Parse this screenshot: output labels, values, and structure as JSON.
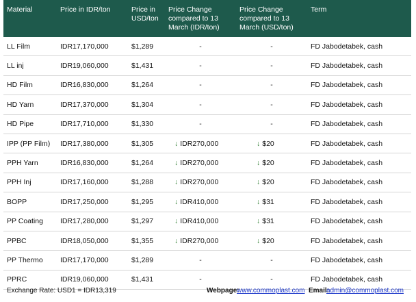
{
  "table": {
    "header": [
      "Material",
      "Price in IDR/ton",
      "Price in USD/ton",
      "Price Change compared to 13 March (IDR/ton)",
      "Price Change compared to 13 March (USD/ton)",
      "Term"
    ],
    "rows": [
      [
        "LL Film",
        "IDR17,170,000",
        "$1,289",
        "-",
        "-",
        "FD Jabodetabek, cash"
      ],
      [
        "LL inj",
        "IDR19,060,000",
        "$1,431",
        "-",
        "-",
        "FD Jabodetabek, cash"
      ],
      [
        "HD Film",
        "IDR16,830,000",
        "$1,264",
        "-",
        "-",
        "FD Jabodetabek, cash"
      ],
      [
        "HD Yarn",
        "IDR17,370,000",
        "$1,304",
        "-",
        "-",
        "FD Jabodetabek, cash"
      ],
      [
        "HD Pipe",
        "IDR17,710,000",
        "$1,330",
        "-",
        "-",
        "FD Jabodetabek, cash"
      ],
      [
        "IPP (PP Film)",
        "IDR17,380,000",
        "$1,305",
        "IDR270,000",
        "$20",
        "FD Jabodetabek, cash"
      ],
      [
        "PPH Yarn",
        "IDR16,830,000",
        "$1,264",
        "IDR270,000",
        "$20",
        "FD Jabodetabek, cash"
      ],
      [
        "PPH Inj",
        "IDR17,160,000",
        "$1,288",
        "IDR270,000",
        "$20",
        "FD Jabodetabek, cash"
      ],
      [
        "BOPP",
        "IDR17,250,000",
        "$1,295",
        "IDR410,000",
        "$31",
        "FD Jabodetabek, cash"
      ],
      [
        "PP Coating",
        "IDR17,280,000",
        "$1,297",
        "IDR410,000",
        "$31",
        "FD Jabodetabek, cash"
      ],
      [
        "PPBC",
        "IDR18,050,000",
        "$1,355",
        "IDR270,000",
        "$20",
        "FD Jabodetabek, cash"
      ],
      [
        "PP Thermo",
        "IDR17,170,000",
        "$1,289",
        "-",
        "-",
        "FD Jabodetabek, cash"
      ],
      [
        "PPRC",
        "IDR19,060,000",
        "$1,431",
        "-",
        "-",
        "FD Jabodetabek, cash"
      ]
    ]
  },
  "footer": {
    "exchange_rate": "Exchange Rate: USD1 = IDR13,319",
    "webpage_label": "Webpage:",
    "webpage": "www.commoplast.com",
    "email_label": "Email:",
    "email": "admin@commoplast.com"
  }
}
